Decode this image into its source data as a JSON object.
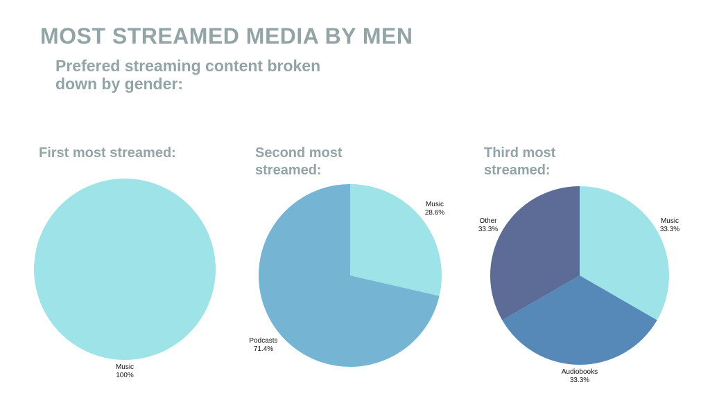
{
  "title": "MOST STREAMED MEDIA BY MEN",
  "subtitle": "Prefered streaming content broken down by gender:",
  "chart_data": [
    {
      "type": "pie",
      "title": "First most streamed:",
      "slices": [
        {
          "label": "Music",
          "value": 100,
          "display": "100%",
          "color": "#9de3e8"
        }
      ]
    },
    {
      "type": "pie",
      "title": "Second most streamed:",
      "slices": [
        {
          "label": "Music",
          "value": 28.6,
          "display": "28.6%",
          "color": "#9de3e8"
        },
        {
          "label": "Podcasts",
          "value": 71.4,
          "display": "71.4%",
          "color": "#75b5d3"
        }
      ]
    },
    {
      "type": "pie",
      "title": "Third most streamed:",
      "slices": [
        {
          "label": "Music",
          "value": 33.3,
          "display": "33.3%",
          "color": "#9de3e8"
        },
        {
          "label": "Audiobooks",
          "value": 33.3,
          "display": "33.3%",
          "color": "#5689b8"
        },
        {
          "label": "Other",
          "value": 33.3,
          "display": "33.3%",
          "color": "#5d6c97"
        }
      ]
    }
  ]
}
